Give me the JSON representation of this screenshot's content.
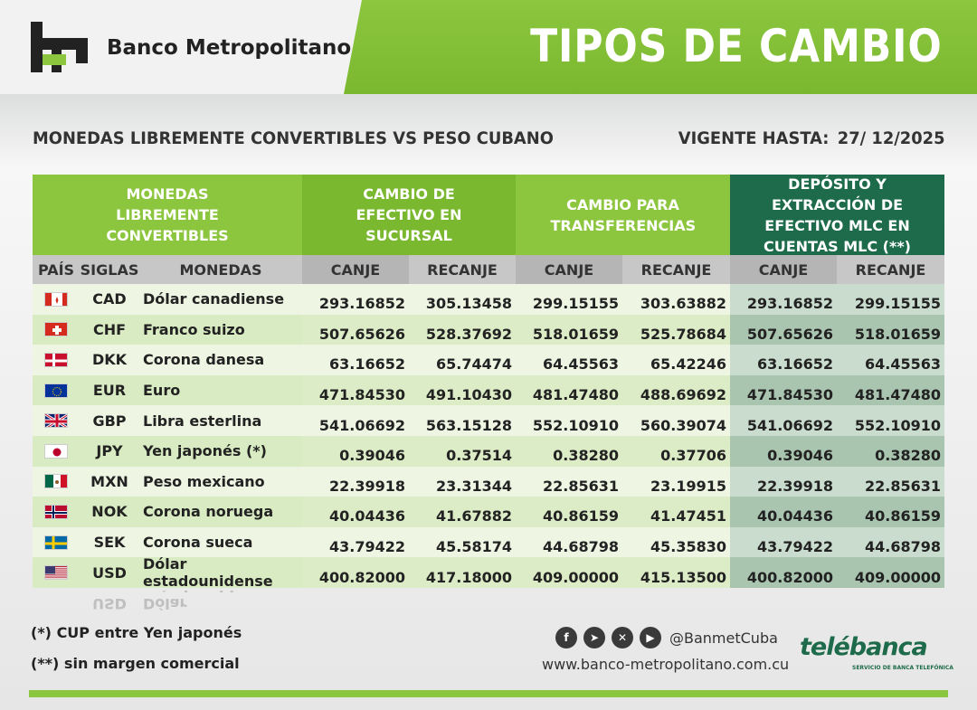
{
  "header": {
    "bank_name": "Banco Metropolitano",
    "title": "TIPOS DE CAMBIO"
  },
  "subtitle": "MONEDAS LIBREMENTE CONVERTIBLES VS PESO CUBANO",
  "validity": {
    "label": "VIGENTE HASTA:",
    "date": "27/ 12/2025"
  },
  "table": {
    "group_headers": {
      "monedas": "MONEDAS LIBREMENTE CONVERTIBLES",
      "efectivo": "CAMBIO DE EFECTIVO EN SUCURSAL",
      "transferencias": "CAMBIO PARA TRANSFERENCIAS",
      "mlc": "DEPÓSITO Y EXTRACCIÓN DE EFECTIVO MLC EN CUENTAS MLC (**)"
    },
    "sub_headers": [
      "PAÍS",
      "SIGLAS",
      "MONEDAS",
      "CANJE",
      "RECANJE",
      "CANJE",
      "RECANJE",
      "CANJE",
      "RECANJE"
    ],
    "rows": [
      {
        "flag": "flag-canada",
        "siglas": "CAD",
        "moneda": "Dólar canadiense",
        "ef_canje": "293.16852",
        "ef_recanje": "305.13458",
        "tr_canje": "299.15155",
        "tr_recanje": "303.63882",
        "mlc_canje": "293.16852",
        "mlc_recanje": "299.15155"
      },
      {
        "flag": "flag-switzerland",
        "siglas": "CHF",
        "moneda": "Franco suizo",
        "ef_canje": "507.65626",
        "ef_recanje": "528.37692",
        "tr_canje": "518.01659",
        "tr_recanje": "525.78684",
        "mlc_canje": "507.65626",
        "mlc_recanje": "518.01659"
      },
      {
        "flag": "flag-denmark",
        "siglas": "DKK",
        "moneda": "Corona danesa",
        "ef_canje": "63.16652",
        "ef_recanje": "65.74474",
        "tr_canje": "64.45563",
        "tr_recanje": "65.42246",
        "mlc_canje": "63.16652",
        "mlc_recanje": "64.45563"
      },
      {
        "flag": "flag-eu",
        "siglas": "EUR",
        "moneda": "Euro",
        "ef_canje": "471.84530",
        "ef_recanje": "491.10430",
        "tr_canje": "481.47480",
        "tr_recanje": "488.69692",
        "mlc_canje": "471.84530",
        "mlc_recanje": "481.47480"
      },
      {
        "flag": "flag-uk",
        "siglas": "GBP",
        "moneda": "Libra esterlina",
        "ef_canje": "541.06692",
        "ef_recanje": "563.15128",
        "tr_canje": "552.10910",
        "tr_recanje": "560.39074",
        "mlc_canje": "541.06692",
        "mlc_recanje": "552.10910"
      },
      {
        "flag": "flag-japan",
        "siglas": "JPY",
        "moneda": "Yen japonés (*)",
        "ef_canje": "0.39046",
        "ef_recanje": "0.37514",
        "tr_canje": "0.38280",
        "tr_recanje": "0.37706",
        "mlc_canje": "0.39046",
        "mlc_recanje": "0.38280"
      },
      {
        "flag": "flag-mexico",
        "siglas": "MXN",
        "moneda": "Peso mexicano",
        "ef_canje": "22.39918",
        "ef_recanje": "23.31344",
        "tr_canje": "22.85631",
        "tr_recanje": "23.19915",
        "mlc_canje": "22.39918",
        "mlc_recanje": "22.85631"
      },
      {
        "flag": "flag-norway",
        "siglas": "NOK",
        "moneda": "Corona noruega",
        "ef_canje": "40.04436",
        "ef_recanje": "41.67882",
        "tr_canje": "40.86159",
        "tr_recanje": "41.47451",
        "mlc_canje": "40.04436",
        "mlc_recanje": "40.86159"
      },
      {
        "flag": "flag-sweden",
        "siglas": "SEK",
        "moneda": "Corona sueca",
        "ef_canje": "43.79422",
        "ef_recanje": "45.58174",
        "tr_canje": "44.68798",
        "tr_recanje": "45.35830",
        "mlc_canje": "43.79422",
        "mlc_recanje": "44.68798"
      },
      {
        "flag": "flag-usa",
        "siglas": "USD",
        "moneda": "Dólar estadounidense",
        "ef_canje": "400.82000",
        "ef_recanje": "417.18000",
        "tr_canje": "409.00000",
        "tr_recanje": "415.13500",
        "mlc_canje": "400.82000",
        "mlc_recanje": "409.00000"
      }
    ]
  },
  "notes": {
    "note1": "(*) CUP entre Yen japonés",
    "note2": "(**) sin margen comercial"
  },
  "social": {
    "handle": "@BanmetCuba",
    "website": "www.banco-metropolitano.com.cu",
    "icons": [
      "facebook-icon",
      "telegram-icon",
      "x-icon",
      "youtube-icon"
    ]
  },
  "telebanca": {
    "name": "telébanca",
    "tagline": "SERVICIO DE BANCA TELEFÓNICA"
  },
  "colors": {
    "brand_green": "#8cc63f",
    "dark_green": "#1d6b4a",
    "row_light": "#eef5e3",
    "row_green": "#d9ebc2"
  }
}
